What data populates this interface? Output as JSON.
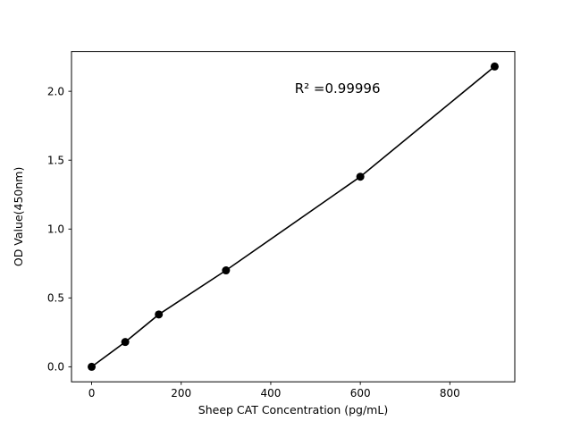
{
  "chart_data": {
    "type": "line",
    "title": "",
    "xlabel": "Sheep CAT Concentration (pg/mL)",
    "ylabel": "OD Value(450nm)",
    "annotation": "R² =0.99996",
    "x": [
      0,
      75,
      150,
      300,
      600,
      900
    ],
    "y": [
      0.0,
      0.18,
      0.38,
      0.7,
      1.38,
      2.18
    ],
    "xlim": [
      -45,
      945
    ],
    "ylim": [
      -0.109,
      2.289
    ],
    "xticks": [
      0,
      200,
      400,
      600,
      800
    ],
    "xtick_labels": [
      "0",
      "200",
      "400",
      "600",
      "800"
    ],
    "yticks": [
      0.0,
      0.5,
      1.0,
      1.5,
      2.0
    ],
    "ytick_labels": [
      "0.0",
      "0.5",
      "1.0",
      "1.5",
      "2.0"
    ],
    "grid": false,
    "legend": "none",
    "marker": "circle",
    "marker_color": "#000000",
    "line_color": "#000000",
    "frame_color": "#000000",
    "background_color": "#ffffff",
    "annotation_pos": {
      "x": 0.6,
      "y": 0.125
    }
  }
}
